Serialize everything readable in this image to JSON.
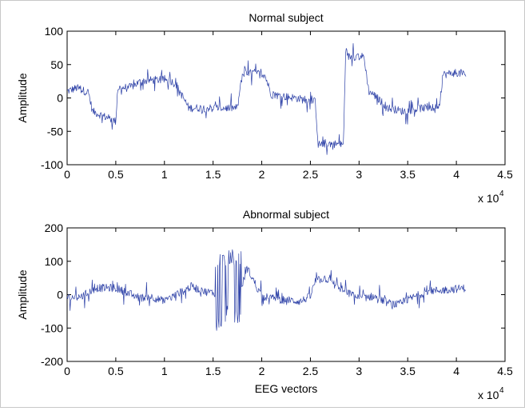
{
  "chart_data": [
    {
      "type": "line",
      "title": "Normal subject",
      "xlabel": "",
      "ylabel": "Amplitude",
      "xlim": [
        0,
        45000
      ],
      "ylim": [
        -100,
        100
      ],
      "xticks": [
        0,
        5000,
        10000,
        15000,
        20000,
        25000,
        30000,
        35000,
        40000,
        45000
      ],
      "xtick_labels": [
        "0",
        "0.5",
        "1",
        "1.5",
        "2",
        "2.5",
        "3",
        "3.5",
        "4",
        "4.5"
      ],
      "yticks": [
        -100,
        -50,
        0,
        50,
        100
      ],
      "ytick_labels": [
        "-100",
        "-50",
        "0",
        "50",
        "100"
      ],
      "x_multiplier_base": "x 10",
      "x_multiplier_exp": "4",
      "series_color": "#2b3fa6",
      "x": [
        0,
        1000,
        2200,
        2600,
        4200,
        5000,
        5200,
        6500,
        7600,
        9000,
        10500,
        11200,
        12500,
        14000,
        17500,
        18000,
        19200,
        20300,
        21000,
        23500,
        25000,
        25500,
        25800,
        26800,
        28400,
        28600,
        30500,
        31000,
        31500,
        33000,
        34500,
        36500,
        38300,
        38600,
        40000,
        41000
      ],
      "y": [
        10,
        15,
        8,
        -20,
        -30,
        -35,
        15,
        16,
        25,
        27,
        27,
        20,
        -15,
        -15,
        -15,
        35,
        38,
        35,
        5,
        0,
        -5,
        -5,
        -70,
        -68,
        -70,
        62,
        62,
        10,
        5,
        -15,
        -20,
        -15,
        -15,
        35,
        38,
        35
      ]
    },
    {
      "type": "line",
      "title": "Abnormal subject",
      "xlabel": "EEG vectors",
      "ylabel": "Amplitude",
      "xlim": [
        0,
        45000
      ],
      "ylim": [
        -200,
        200
      ],
      "xticks": [
        0,
        5000,
        10000,
        15000,
        20000,
        25000,
        30000,
        35000,
        40000,
        45000
      ],
      "xtick_labels": [
        "0",
        "0.5",
        "1",
        "1.5",
        "2",
        "2.5",
        "3",
        "3.5",
        "4",
        "4.5"
      ],
      "yticks": [
        -200,
        -100,
        0,
        100,
        200
      ],
      "ytick_labels": [
        "-200",
        "-100",
        "0",
        "100",
        "200"
      ],
      "x_multiplier_base": "x 10",
      "x_multiplier_exp": "4",
      "series_color": "#2b3fa6",
      "x": [
        0,
        1500,
        3000,
        5000,
        7500,
        8500,
        10000,
        11500,
        12800,
        14000,
        15200,
        15500,
        16500,
        17800,
        18500,
        19200,
        20000,
        22000,
        24000,
        25000,
        25500,
        26500,
        28500,
        30000,
        31500,
        33000,
        34000,
        35000,
        37000,
        39000,
        41000
      ],
      "y": [
        -10,
        -5,
        20,
        20,
        -10,
        -5,
        -20,
        5,
        25,
        10,
        5,
        0,
        30,
        10,
        80,
        40,
        -5,
        -15,
        -20,
        -5,
        40,
        50,
        10,
        -10,
        -5,
        -25,
        -30,
        -15,
        10,
        15,
        20
      ]
    }
  ]
}
